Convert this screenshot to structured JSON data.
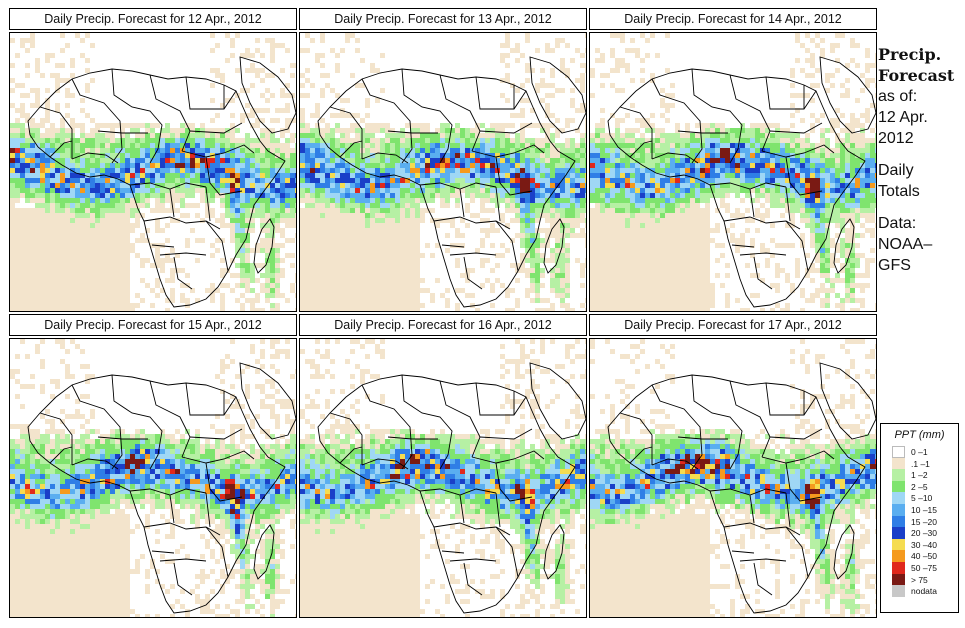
{
  "panels": [
    {
      "title": "Daily Precip. Forecast for  12 Apr., 2012",
      "seed": 12
    },
    {
      "title": "Daily Precip. Forecast for  13 Apr., 2012",
      "seed": 13
    },
    {
      "title": "Daily Precip. Forecast for  14 Apr., 2012",
      "seed": 14
    },
    {
      "title": "Daily Precip. Forecast for  15 Apr., 2012",
      "seed": 15
    },
    {
      "title": "Daily Precip. Forecast for  16 Apr., 2012",
      "seed": 16
    },
    {
      "title": "Daily Precip. Forecast for  17 Apr., 2012",
      "seed": 17
    }
  ],
  "sidebar": {
    "heading1": "Precip.",
    "heading2": "Forecast",
    "asof": "as of:",
    "date1": "12 Apr.",
    "date2": "2012",
    "daily": "Daily",
    "totals": "Totals",
    "data_label": "Data:",
    "source1": "NOAA–",
    "source2": "GFS"
  },
  "legend": {
    "title": "PPT (mm)",
    "items": [
      {
        "label": "0 –1",
        "color": "#ffffff"
      },
      {
        "label": ".1 –1",
        "color": "#f3e4cc"
      },
      {
        "label": "1 –2",
        "color": "#b6f0a4"
      },
      {
        "label": "2 –5",
        "color": "#7fe46e"
      },
      {
        "label": "5 –10",
        "color": "#9fd7f5"
      },
      {
        "label": "10 –15",
        "color": "#5aaef0"
      },
      {
        "label": "15 –20",
        "color": "#2f7ee6"
      },
      {
        "label": "20 –30",
        "color": "#1a3fc8"
      },
      {
        "label": "30 –40",
        "color": "#f5dc50"
      },
      {
        "label": "40 –50",
        "color": "#f59a1e"
      },
      {
        "label": "50 –75",
        "color": "#e0281c"
      },
      {
        "label": "> 75",
        "color": "#7a1a14"
      },
      {
        "label": "nodata",
        "color": "#c8c8c8"
      }
    ]
  }
}
